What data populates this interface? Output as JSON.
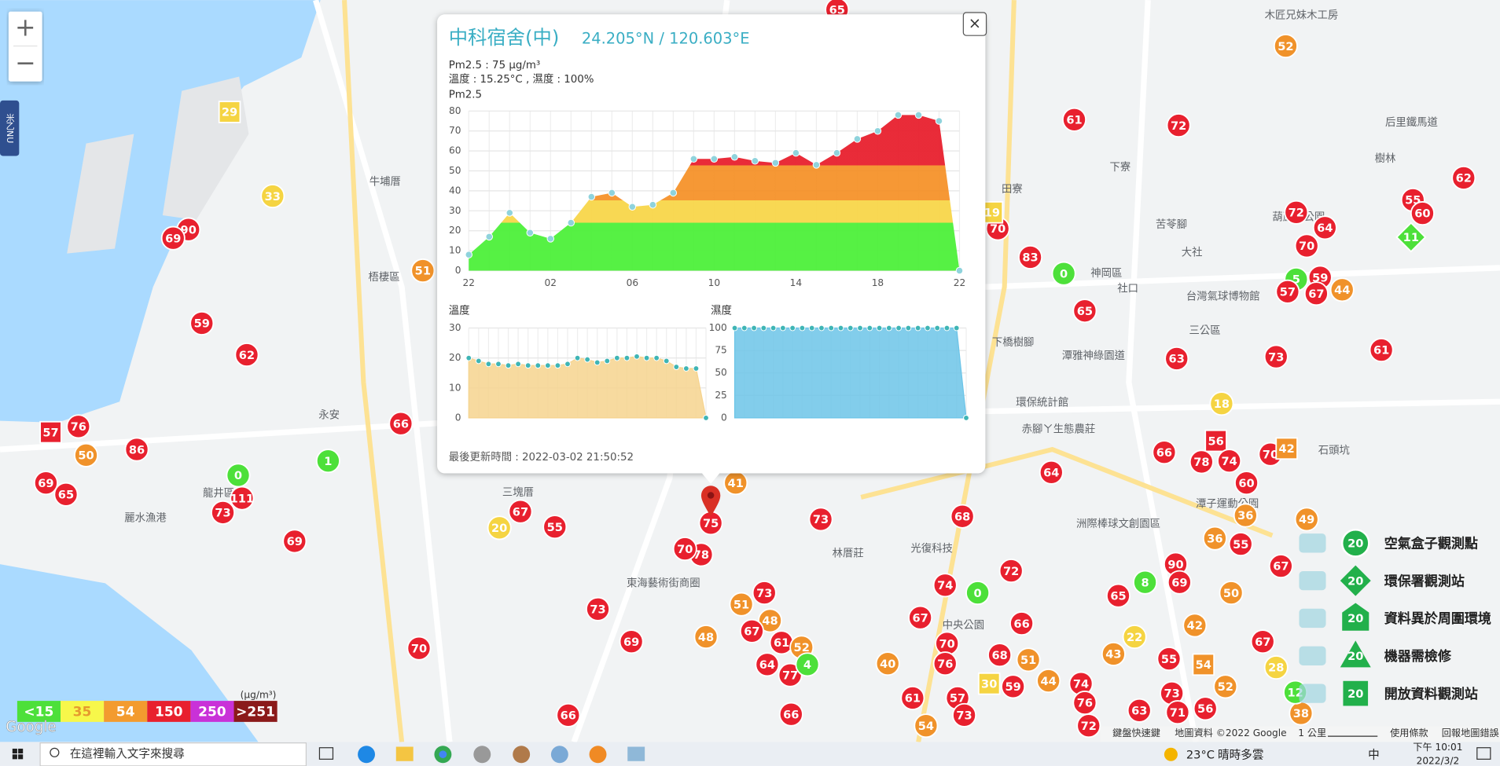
{
  "map": {
    "zoom_in": "+",
    "zoom_out": "−",
    "side_tab": "米乙NU",
    "google": "Google",
    "attribution": [
      "鍵盤快速鍵",
      "地圖資料 ©2022 Google",
      "1 公里",
      "使用條款",
      "回報地圖錯誤"
    ],
    "places": [
      "梧棲區",
      "龍井區",
      "永安",
      "三塊厝",
      "神岡區",
      "林厝莊",
      "東海藝術街商圈",
      "台灣氣球博物館",
      "三公區",
      "下橋樹腳",
      "潭子運動公園",
      "洲際棒球文創園區",
      "中央公園",
      "麗水漁港",
      "牛埔厝",
      "田寮",
      "下寮",
      "苦苓腳",
      "大社",
      "社口",
      "后里鐵馬道",
      "樹林",
      "石頭坑",
      "葫蘆墩公園",
      "潭雅神綠園道",
      "赤腳ㄚ生態農莊",
      "光復科技",
      "環保統計館",
      "木匠兄妹木工房"
    ],
    "markers": [
      {
        "value": 65,
        "color": "#e8202e"
      },
      {
        "value": 29,
        "color": "#f5d442",
        "shape": "square"
      },
      {
        "value": 33,
        "color": "#f5d442"
      },
      {
        "value": 90,
        "color": "#e8202e"
      },
      {
        "value": 69,
        "color": "#e8202e"
      },
      {
        "value": 51,
        "color": "#f0922a"
      },
      {
        "value": 59,
        "color": "#e8202e"
      },
      {
        "value": 62,
        "color": "#e8202e"
      },
      {
        "value": 76,
        "color": "#e8202e"
      },
      {
        "value": 57,
        "color": "#e8202e",
        "shape": "square"
      },
      {
        "value": 50,
        "color": "#f0922a"
      },
      {
        "value": 86,
        "color": "#e8202e"
      },
      {
        "value": 69,
        "color": "#e8202e"
      },
      {
        "value": 65,
        "color": "#e8202e"
      },
      {
        "value": 0,
        "color": "#4de03a"
      },
      {
        "value": 1,
        "color": "#4de03a"
      },
      {
        "value": 111,
        "color": "#e8202e"
      },
      {
        "value": 73,
        "color": "#e8202e"
      },
      {
        "value": 66,
        "color": "#e8202e"
      },
      {
        "value": 69,
        "color": "#e8202e"
      },
      {
        "value": 20,
        "color": "#f5d442"
      },
      {
        "value": 67,
        "color": "#e8202e"
      },
      {
        "value": 55,
        "color": "#e8202e"
      },
      {
        "value": 73,
        "color": "#e8202e"
      },
      {
        "value": 69,
        "color": "#e8202e"
      },
      {
        "value": 70,
        "color": "#e8202e"
      },
      {
        "value": 66,
        "color": "#e8202e"
      },
      {
        "value": 41,
        "color": "#f0922a"
      },
      {
        "value": 75,
        "color": "#e8202e"
      },
      {
        "value": 78,
        "color": "#e8202e"
      },
      {
        "value": 70,
        "color": "#e8202e"
      },
      {
        "value": 73,
        "color": "#e8202e"
      },
      {
        "value": 73,
        "color": "#e8202e"
      },
      {
        "value": 51,
        "color": "#f0922a"
      },
      {
        "value": 48,
        "color": "#f0922a"
      },
      {
        "value": 67,
        "color": "#e8202e"
      },
      {
        "value": 48,
        "color": "#f0922a"
      },
      {
        "value": 61,
        "color": "#e8202e"
      },
      {
        "value": 52,
        "color": "#f0922a"
      },
      {
        "value": 64,
        "color": "#e8202e"
      },
      {
        "value": 77,
        "color": "#e8202e"
      },
      {
        "value": 4,
        "color": "#4de03a"
      },
      {
        "value": 66,
        "color": "#e8202e"
      },
      {
        "value": 68,
        "color": "#e8202e"
      },
      {
        "value": 74,
        "color": "#e8202e"
      },
      {
        "value": 0,
        "color": "#4de03a"
      },
      {
        "value": 72,
        "color": "#e8202e"
      },
      {
        "value": 67,
        "color": "#e8202e"
      },
      {
        "value": 70,
        "color": "#e8202e"
      },
      {
        "value": 76,
        "color": "#e8202e"
      },
      {
        "value": 40,
        "color": "#f0922a"
      },
      {
        "value": 61,
        "color": "#e8202e"
      },
      {
        "value": 57,
        "color": "#e8202e"
      },
      {
        "value": 73,
        "color": "#e8202e"
      },
      {
        "value": 66,
        "color": "#e8202e"
      },
      {
        "value": 68,
        "color": "#e8202e"
      },
      {
        "value": 51,
        "color": "#f0922a"
      },
      {
        "value": 30,
        "color": "#f5d442",
        "shape": "square"
      },
      {
        "value": 59,
        "color": "#e8202e"
      },
      {
        "value": 44,
        "color": "#f0922a"
      },
      {
        "value": 64,
        "color": "#e8202e"
      },
      {
        "value": 83,
        "color": "#e8202e"
      },
      {
        "value": 0,
        "color": "#4de03a"
      },
      {
        "value": 65,
        "color": "#e8202e"
      },
      {
        "value": 70,
        "color": "#e8202e"
      },
      {
        "value": 19,
        "color": "#f5d442",
        "shape": "square"
      },
      {
        "value": 61,
        "color": "#e8202e"
      },
      {
        "value": 72,
        "color": "#e8202e"
      },
      {
        "value": 63,
        "color": "#e8202e"
      },
      {
        "value": 52,
        "color": "#f0922a"
      },
      {
        "value": 62,
        "color": "#e8202e"
      },
      {
        "value": 55,
        "color": "#e8202e"
      },
      {
        "value": 60,
        "color": "#e8202e"
      },
      {
        "value": 11,
        "color": "#4de03a",
        "shape": "diamond"
      },
      {
        "value": 72,
        "color": "#e8202e"
      },
      {
        "value": 64,
        "color": "#e8202e"
      },
      {
        "value": 70,
        "color": "#e8202e"
      },
      {
        "value": 5,
        "color": "#4de03a"
      },
      {
        "value": 59,
        "color": "#e8202e"
      },
      {
        "value": 44,
        "color": "#f0922a"
      },
      {
        "value": 67,
        "color": "#e8202e"
      },
      {
        "value": 57,
        "color": "#e8202e"
      },
      {
        "value": 61,
        "color": "#e8202e"
      },
      {
        "value": 73,
        "color": "#e8202e"
      },
      {
        "value": 18,
        "color": "#f5d442"
      },
      {
        "value": 56,
        "color": "#e8202e",
        "shape": "square"
      },
      {
        "value": 74,
        "color": "#e8202e"
      },
      {
        "value": 78,
        "color": "#e8202e"
      },
      {
        "value": 66,
        "color": "#e8202e"
      },
      {
        "value": 60,
        "color": "#e8202e"
      },
      {
        "value": 70,
        "color": "#e8202e"
      },
      {
        "value": 42,
        "color": "#f0922a",
        "shape": "square"
      },
      {
        "value": 49,
        "color": "#f0922a"
      },
      {
        "value": 36,
        "color": "#f0922a"
      },
      {
        "value": 36,
        "color": "#f0922a"
      },
      {
        "value": 55,
        "color": "#e8202e"
      },
      {
        "value": 90,
        "color": "#e8202e"
      },
      {
        "value": 69,
        "color": "#e8202e"
      },
      {
        "value": 8,
        "color": "#4de03a"
      },
      {
        "value": 65,
        "color": "#e8202e"
      },
      {
        "value": 50,
        "color": "#f0922a"
      },
      {
        "value": 67,
        "color": "#e8202e"
      },
      {
        "value": 22,
        "color": "#f5d442"
      },
      {
        "value": 42,
        "color": "#f0922a"
      },
      {
        "value": 67,
        "color": "#e8202e"
      },
      {
        "value": 43,
        "color": "#f0922a"
      },
      {
        "value": 55,
        "color": "#e8202e"
      },
      {
        "value": 54,
        "color": "#f0922a",
        "shape": "square"
      },
      {
        "value": 28,
        "color": "#f5d442"
      },
      {
        "value": 52,
        "color": "#f0922a"
      },
      {
        "value": 73,
        "color": "#e8202e"
      },
      {
        "value": 74,
        "color": "#e8202e"
      },
      {
        "value": 76,
        "color": "#e8202e"
      },
      {
        "value": 63,
        "color": "#e8202e"
      },
      {
        "value": 71,
        "color": "#e8202e"
      },
      {
        "value": 56,
        "color": "#e8202e"
      },
      {
        "value": 38,
        "color": "#f0922a"
      },
      {
        "value": 72,
        "color": "#e8202e"
      },
      {
        "value": 54,
        "color": "#f0922a"
      },
      {
        "value": 12,
        "color": "#4de03a"
      }
    ]
  },
  "popup": {
    "close": "×",
    "title": "中科宿舍(中)",
    "coords": "24.205°N / 120.603°E",
    "pm25_line": "Pm2.5 : 75 μg/m³",
    "env_line": "溫度 : 15.25°C , 濕度 : 100%",
    "updated": "最後更新時間 : 2022-03-02 21:50:52"
  },
  "chart_data": [
    {
      "type": "area",
      "title": "Pm2.5",
      "categories": [
        "22",
        null,
        null,
        null,
        "02",
        null,
        null,
        null,
        "06",
        null,
        null,
        null,
        "10",
        null,
        null,
        null,
        "14",
        null,
        null,
        null,
        "18",
        null,
        null,
        null,
        "22"
      ],
      "series": [
        {
          "name": "Pm2.5",
          "color": "#8fd3dc",
          "values": [
            8,
            17,
            29,
            19,
            16,
            24,
            37,
            39,
            32,
            33,
            39,
            56,
            56,
            57,
            55,
            54,
            59,
            53,
            59,
            66,
            70,
            78,
            78,
            75,
            0
          ]
        }
      ],
      "ylim": [
        0,
        80
      ],
      "yticks": [
        0,
        10,
        20,
        30,
        40,
        50,
        60,
        70,
        80
      ],
      "grid": true
    },
    {
      "type": "area",
      "title": "溫度",
      "categories": [
        null,
        null,
        null,
        null,
        null,
        null,
        null,
        null,
        null,
        null,
        null,
        null,
        null,
        null,
        null,
        null,
        null,
        null,
        null,
        null,
        null,
        null,
        null,
        null,
        null
      ],
      "series": [
        {
          "name": "溫度",
          "color": "#3fb5b5",
          "fill": "#f6d38e",
          "values": [
            20,
            19,
            18,
            18,
            17.5,
            18,
            17.5,
            17.5,
            17.5,
            17.5,
            18,
            20,
            19.5,
            18.5,
            19,
            20,
            20,
            20.5,
            20,
            20,
            19,
            17,
            16.5,
            16.5,
            0
          ]
        }
      ],
      "ylim": [
        0,
        30
      ],
      "yticks": [
        0,
        10,
        20,
        30
      ],
      "grid": true
    },
    {
      "type": "area",
      "title": "濕度",
      "categories": [
        null,
        null,
        null,
        null,
        null,
        null,
        null,
        null,
        null,
        null,
        null,
        null,
        null,
        null,
        null,
        null,
        null,
        null,
        null,
        null,
        null,
        null,
        null,
        null,
        null
      ],
      "series": [
        {
          "name": "濕度",
          "color": "#3fb5b5",
          "fill": "#6cc4e8",
          "values": [
            100,
            100,
            100,
            100,
            100,
            100,
            100,
            100,
            100,
            100,
            100,
            100,
            100,
            100,
            100,
            100,
            100,
            100,
            100,
            100,
            100,
            100,
            100,
            100,
            0
          ]
        }
      ],
      "ylim": [
        0,
        100
      ],
      "yticks": [
        0,
        25,
        50,
        75,
        100
      ],
      "grid": true
    }
  ],
  "aqi_legend": {
    "unit": "(μg/m³)",
    "items": [
      {
        "label": "<15",
        "color": "#4de03a",
        "text_color": "#ffffff"
      },
      {
        "label": "35",
        "color": "#f7f74a",
        "text_color": "#e69a2e"
      },
      {
        "label": "54",
        "color": "#f39b2f",
        "text_color": "#ffffff"
      },
      {
        "label": "150",
        "color": "#e8202e",
        "text_color": "#ffffff"
      },
      {
        "label": "250",
        "color": "#c931d8",
        "text_color": "#ffffff"
      },
      {
        "label": ">251",
        "color": "#8b1a1a",
        "text_color": "#ffffff"
      }
    ]
  },
  "station_legend": [
    {
      "icon": "20",
      "shape": "circle",
      "label": "空氣盒子觀測點"
    },
    {
      "icon": "20",
      "shape": "diamond",
      "label": "環保署觀測站"
    },
    {
      "icon": "20",
      "shape": "house",
      "label": "資料異於周圍環境"
    },
    {
      "icon": "20",
      "shape": "triangle",
      "label": "機器需檢修"
    },
    {
      "icon": "20",
      "shape": "square",
      "label": "開放資料觀測站"
    }
  ],
  "taskbar": {
    "search": "在這裡輸入文字來搜尋",
    "temp": "23°C",
    "weather": "晴時多雲",
    "ime": "中",
    "time": "下午 10:01",
    "date": "2022/3/2"
  }
}
